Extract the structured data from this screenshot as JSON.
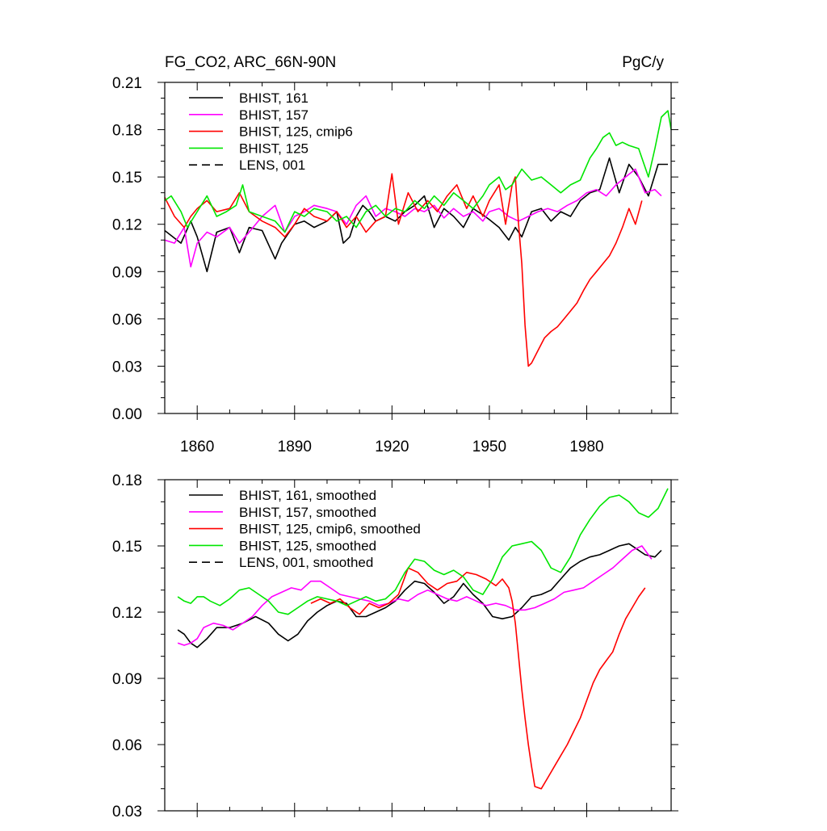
{
  "colors": {
    "black": "#000000",
    "magenta": "#ff00ff",
    "red": "#ff0000",
    "green": "#00e600"
  },
  "chart_data": [
    {
      "type": "line",
      "title_left": "FG_CO2, ARC_66N-90N",
      "title_right": "PgC/y",
      "xlim": [
        1850,
        2006
      ],
      "ylim": [
        0.0,
        0.21
      ],
      "x_ticks": [
        1860,
        1890,
        1920,
        1950,
        1980
      ],
      "x_tick_labels": [
        "1860",
        "1890",
        "1920",
        "1950",
        "1980"
      ],
      "y_ticks": [
        0.0,
        0.03,
        0.06,
        0.09,
        0.12,
        0.15,
        0.18,
        0.21
      ],
      "y_tick_labels": [
        "0.00",
        "0.03",
        "0.06",
        "0.09",
        "0.12",
        "0.15",
        "0.18",
        "0.21"
      ],
      "grid": false,
      "legend_position": "top-left",
      "legend": [
        "BHIST, 161",
        "BHIST, 157",
        "BHIST, 125, cmip6",
        "BHIST, 125",
        "LENS, 001"
      ],
      "series": [
        {
          "name": "BHIST, 161",
          "color": "#000000",
          "dash": "solid",
          "x": [
            1850,
            1855,
            1858,
            1860,
            1863,
            1866,
            1870,
            1873,
            1876,
            1880,
            1884,
            1886,
            1888,
            1890,
            1893,
            1896,
            1900,
            1903,
            1905,
            1907,
            1909,
            1911,
            1913,
            1915,
            1918,
            1921,
            1924,
            1927,
            1930,
            1933,
            1936,
            1939,
            1942,
            1945,
            1948,
            1950,
            1953,
            1956,
            1958,
            1960,
            1963,
            1966,
            1969,
            1972,
            1975,
            1978,
            1981,
            1984,
            1987,
            1990,
            1993,
            1996,
            1999,
            2002,
            2005
          ],
          "y": [
            0.116,
            0.108,
            0.122,
            0.112,
            0.09,
            0.115,
            0.118,
            0.102,
            0.118,
            0.116,
            0.098,
            0.108,
            0.114,
            0.12,
            0.122,
            0.118,
            0.122,
            0.128,
            0.108,
            0.112,
            0.125,
            0.132,
            0.128,
            0.122,
            0.125,
            0.122,
            0.128,
            0.132,
            0.138,
            0.118,
            0.13,
            0.125,
            0.118,
            0.13,
            0.126,
            0.123,
            0.118,
            0.11,
            0.118,
            0.112,
            0.128,
            0.13,
            0.122,
            0.128,
            0.125,
            0.135,
            0.14,
            0.142,
            0.162,
            0.14,
            0.158,
            0.15,
            0.138,
            0.158,
            0.158
          ]
        },
        {
          "name": "BHIST, 157",
          "color": "#ff00ff",
          "dash": "solid",
          "x": [
            1850,
            1853,
            1856,
            1858,
            1860,
            1863,
            1866,
            1870,
            1873,
            1876,
            1880,
            1884,
            1887,
            1890,
            1893,
            1896,
            1900,
            1903,
            1906,
            1909,
            1912,
            1915,
            1918,
            1921,
            1924,
            1927,
            1930,
            1933,
            1936,
            1939,
            1942,
            1945,
            1948,
            1950,
            1953,
            1956,
            1959,
            1962,
            1965,
            1968,
            1971,
            1974,
            1977,
            1980,
            1983,
            1986,
            1989,
            1992,
            1995,
            1998,
            2001,
            2003
          ],
          "y": [
            0.11,
            0.108,
            0.118,
            0.093,
            0.108,
            0.115,
            0.112,
            0.118,
            0.108,
            0.115,
            0.125,
            0.132,
            0.115,
            0.125,
            0.128,
            0.132,
            0.13,
            0.128,
            0.12,
            0.132,
            0.138,
            0.125,
            0.13,
            0.128,
            0.125,
            0.13,
            0.128,
            0.132,
            0.124,
            0.13,
            0.125,
            0.128,
            0.122,
            0.128,
            0.13,
            0.125,
            0.122,
            0.125,
            0.128,
            0.13,
            0.128,
            0.132,
            0.135,
            0.14,
            0.142,
            0.138,
            0.145,
            0.15,
            0.155,
            0.14,
            0.142,
            0.138
          ]
        },
        {
          "name": "BHIST, 125, cmip6",
          "color": "#ff0000",
          "dash": "solid",
          "x": [
            1850,
            1853,
            1856,
            1858,
            1860,
            1863,
            1866,
            1870,
            1873,
            1876,
            1880,
            1884,
            1887,
            1890,
            1893,
            1896,
            1900,
            1903,
            1906,
            1909,
            1912,
            1915,
            1918,
            1920,
            1922,
            1925,
            1928,
            1931,
            1934,
            1937,
            1940,
            1943,
            1945,
            1948,
            1950,
            1953,
            1955,
            1957,
            1958,
            1959,
            1960,
            1961,
            1962,
            1963,
            1965,
            1967,
            1969,
            1971,
            1973,
            1975,
            1977,
            1979,
            1981,
            1983,
            1985,
            1987,
            1989,
            1991,
            1993,
            1995,
            1997
          ],
          "y": [
            0.137,
            0.125,
            0.118,
            0.125,
            0.13,
            0.135,
            0.128,
            0.13,
            0.14,
            0.128,
            0.122,
            0.118,
            0.112,
            0.12,
            0.13,
            0.125,
            0.122,
            0.128,
            0.118,
            0.125,
            0.115,
            0.122,
            0.125,
            0.152,
            0.12,
            0.14,
            0.128,
            0.135,
            0.128,
            0.138,
            0.145,
            0.13,
            0.138,
            0.125,
            0.135,
            0.145,
            0.12,
            0.145,
            0.15,
            0.12,
            0.095,
            0.056,
            0.03,
            0.032,
            0.04,
            0.048,
            0.052,
            0.055,
            0.06,
            0.065,
            0.07,
            0.078,
            0.085,
            0.09,
            0.095,
            0.1,
            0.108,
            0.118,
            0.13,
            0.12,
            0.135
          ]
        },
        {
          "name": "BHIST, 125",
          "color": "#00e600",
          "dash": "solid",
          "x": [
            1850,
            1852,
            1855,
            1857,
            1860,
            1863,
            1866,
            1869,
            1872,
            1874,
            1876,
            1880,
            1884,
            1887,
            1890,
            1893,
            1896,
            1900,
            1903,
            1906,
            1909,
            1912,
            1915,
            1918,
            1921,
            1924,
            1927,
            1930,
            1933,
            1936,
            1939,
            1942,
            1945,
            1948,
            1950,
            1953,
            1955,
            1957,
            1960,
            1963,
            1966,
            1969,
            1972,
            1975,
            1978,
            1981,
            1983,
            1985,
            1987,
            1989,
            1991,
            1993,
            1996,
            1999,
            2001,
            2003,
            2005,
            2006
          ],
          "y": [
            0.135,
            0.138,
            0.128,
            0.118,
            0.128,
            0.138,
            0.125,
            0.128,
            0.132,
            0.145,
            0.128,
            0.125,
            0.122,
            0.115,
            0.128,
            0.125,
            0.13,
            0.128,
            0.122,
            0.125,
            0.118,
            0.128,
            0.132,
            0.125,
            0.13,
            0.128,
            0.135,
            0.13,
            0.138,
            0.132,
            0.14,
            0.135,
            0.13,
            0.138,
            0.145,
            0.15,
            0.142,
            0.145,
            0.155,
            0.148,
            0.15,
            0.145,
            0.14,
            0.145,
            0.148,
            0.162,
            0.168,
            0.175,
            0.178,
            0.17,
            0.172,
            0.17,
            0.168,
            0.15,
            0.168,
            0.188,
            0.192,
            0.18
          ]
        },
        {
          "name": "LENS, 001",
          "color": "#000000",
          "dash": "dashed",
          "x": [],
          "y": []
        }
      ]
    },
    {
      "type": "line",
      "xlim": [
        1850,
        2006
      ],
      "ylim": [
        0.03,
        0.18
      ],
      "x_ticks": [
        1860,
        1890,
        1920,
        1950,
        1980
      ],
      "y_ticks": [
        0.03,
        0.06,
        0.09,
        0.12,
        0.15,
        0.18
      ],
      "y_tick_labels": [
        "0.03",
        "0.06",
        "0.09",
        "0.12",
        "0.15",
        "0.18"
      ],
      "grid": false,
      "legend_position": "top-left",
      "legend": [
        "BHIST, 161, smoothed",
        "BHIST, 157, smoothed",
        "BHIST, 125, cmip6, smoothed",
        "BHIST, 125, smoothed",
        "LENS, 001, smoothed"
      ],
      "series": [
        {
          "name": "BHIST, 161, smoothed",
          "color": "#000000",
          "dash": "solid",
          "x": [
            1854,
            1856,
            1858,
            1860,
            1863,
            1866,
            1870,
            1874,
            1878,
            1882,
            1885,
            1888,
            1891,
            1894,
            1897,
            1900,
            1903,
            1906,
            1909,
            1912,
            1915,
            1918,
            1921,
            1924,
            1927,
            1930,
            1933,
            1936,
            1939,
            1942,
            1945,
            1948,
            1951,
            1954,
            1957,
            1960,
            1963,
            1966,
            1969,
            1972,
            1975,
            1978,
            1981,
            1984,
            1987,
            1990,
            1993,
            1995,
            1998,
            2001,
            2003
          ],
          "y": [
            0.112,
            0.11,
            0.106,
            0.104,
            0.108,
            0.113,
            0.113,
            0.115,
            0.118,
            0.115,
            0.11,
            0.107,
            0.11,
            0.116,
            0.12,
            0.123,
            0.125,
            0.124,
            0.118,
            0.118,
            0.12,
            0.122,
            0.125,
            0.13,
            0.134,
            0.133,
            0.129,
            0.124,
            0.127,
            0.133,
            0.128,
            0.124,
            0.118,
            0.117,
            0.118,
            0.122,
            0.127,
            0.128,
            0.13,
            0.135,
            0.14,
            0.143,
            0.145,
            0.146,
            0.148,
            0.15,
            0.151,
            0.149,
            0.146,
            0.145,
            0.148
          ]
        },
        {
          "name": "BHIST, 157, smoothed",
          "color": "#ff00ff",
          "dash": "solid",
          "x": [
            1854,
            1856,
            1858,
            1860,
            1862,
            1865,
            1868,
            1871,
            1874,
            1877,
            1880,
            1883,
            1886,
            1889,
            1892,
            1895,
            1898,
            1901,
            1904,
            1907,
            1910,
            1913,
            1916,
            1919,
            1922,
            1925,
            1928,
            1931,
            1934,
            1937,
            1940,
            1943,
            1946,
            1949,
            1952,
            1955,
            1958,
            1961,
            1964,
            1967,
            1970,
            1973,
            1976,
            1979,
            1982,
            1985,
            1988,
            1991,
            1994,
            1997,
            2000
          ],
          "y": [
            0.106,
            0.105,
            0.106,
            0.108,
            0.113,
            0.115,
            0.114,
            0.112,
            0.115,
            0.118,
            0.123,
            0.127,
            0.129,
            0.131,
            0.13,
            0.134,
            0.134,
            0.131,
            0.128,
            0.127,
            0.126,
            0.125,
            0.123,
            0.124,
            0.126,
            0.125,
            0.128,
            0.13,
            0.128,
            0.126,
            0.125,
            0.127,
            0.125,
            0.123,
            0.124,
            0.123,
            0.121,
            0.121,
            0.122,
            0.124,
            0.126,
            0.129,
            0.13,
            0.131,
            0.134,
            0.137,
            0.14,
            0.144,
            0.148,
            0.15,
            0.144
          ]
        },
        {
          "name": "BHIST, 125, cmip6, smoothed",
          "color": "#ff0000",
          "dash": "solid",
          "x": [
            1895,
            1898,
            1901,
            1904,
            1907,
            1910,
            1913,
            1916,
            1919,
            1922,
            1925,
            1928,
            1931,
            1934,
            1937,
            1940,
            1943,
            1946,
            1949,
            1952,
            1954,
            1956,
            1957,
            1958,
            1959,
            1960,
            1961,
            1962,
            1963,
            1964,
            1966,
            1968,
            1970,
            1972,
            1974,
            1976,
            1978,
            1980,
            1982,
            1984,
            1986,
            1988,
            1990,
            1992,
            1994,
            1996,
            1998
          ],
          "y": [
            0.124,
            0.126,
            0.124,
            0.126,
            0.122,
            0.119,
            0.124,
            0.122,
            0.124,
            0.128,
            0.14,
            0.138,
            0.133,
            0.13,
            0.133,
            0.134,
            0.138,
            0.137,
            0.135,
            0.132,
            0.135,
            0.131,
            0.125,
            0.115,
            0.1,
            0.085,
            0.072,
            0.06,
            0.05,
            0.041,
            0.04,
            0.045,
            0.05,
            0.055,
            0.06,
            0.066,
            0.072,
            0.08,
            0.088,
            0.094,
            0.098,
            0.102,
            0.11,
            0.117,
            0.122,
            0.127,
            0.131
          ]
        },
        {
          "name": "BHIST, 125, smoothed",
          "color": "#00e600",
          "dash": "solid",
          "x": [
            1854,
            1856,
            1858,
            1860,
            1862,
            1864,
            1867,
            1870,
            1873,
            1876,
            1879,
            1882,
            1885,
            1888,
            1891,
            1894,
            1897,
            1900,
            1903,
            1906,
            1909,
            1912,
            1915,
            1918,
            1921,
            1924,
            1927,
            1930,
            1933,
            1936,
            1939,
            1942,
            1945,
            1948,
            1951,
            1954,
            1957,
            1960,
            1963,
            1966,
            1969,
            1972,
            1975,
            1978,
            1981,
            1984,
            1987,
            1990,
            1993,
            1996,
            1999,
            2002,
            2005
          ],
          "y": [
            0.127,
            0.125,
            0.124,
            0.127,
            0.127,
            0.125,
            0.123,
            0.126,
            0.13,
            0.131,
            0.128,
            0.125,
            0.12,
            0.119,
            0.122,
            0.125,
            0.127,
            0.126,
            0.125,
            0.123,
            0.125,
            0.127,
            0.125,
            0.126,
            0.13,
            0.138,
            0.144,
            0.143,
            0.139,
            0.137,
            0.139,
            0.136,
            0.13,
            0.128,
            0.135,
            0.145,
            0.15,
            0.151,
            0.152,
            0.148,
            0.14,
            0.138,
            0.145,
            0.155,
            0.162,
            0.168,
            0.172,
            0.173,
            0.17,
            0.165,
            0.163,
            0.167,
            0.176
          ]
        },
        {
          "name": "LENS, 001, smoothed",
          "color": "#000000",
          "dash": "dashed",
          "x": [],
          "y": []
        }
      ]
    }
  ]
}
